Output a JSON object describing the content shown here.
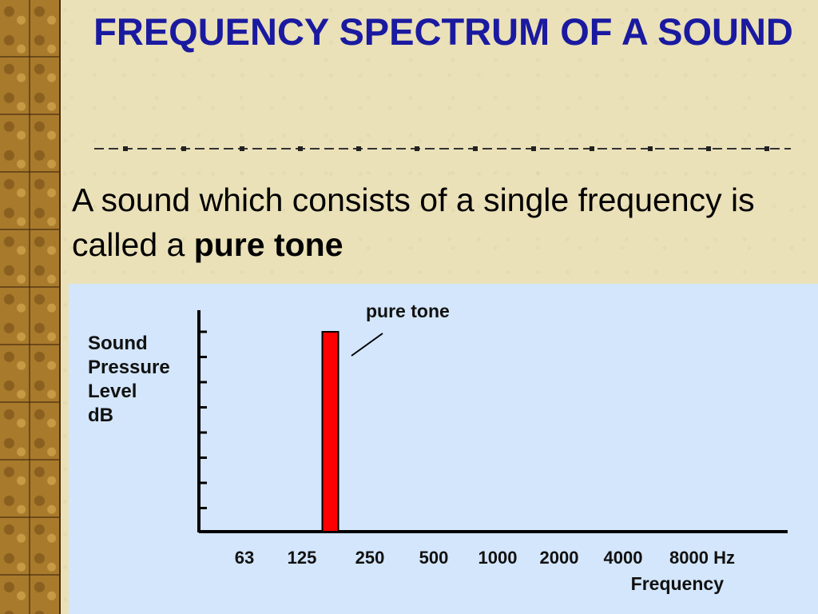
{
  "slide": {
    "title": "FREQUENCY SPECTRUM OF A SOUND",
    "body_prefix": "A sound which consists of a single frequency is called a ",
    "body_bold": "pure tone"
  },
  "chart_data": {
    "type": "bar",
    "categories": [
      "63",
      "125",
      "250",
      "500",
      "1000",
      "2000",
      "4000",
      "8000 Hz"
    ],
    "tick_labels": [
      "63",
      "125",
      "250",
      "500",
      "1000",
      "2000",
      "4000",
      "8000 Hz"
    ],
    "values": [
      0,
      0,
      1,
      0,
      0,
      0,
      0,
      0
    ],
    "bar_position_between": [
      "125",
      "250"
    ],
    "bar_color": "#ff0000",
    "annotation": "pure tone",
    "ylabel_lines": [
      "Sound",
      "Pressure",
      "Level",
      "dB"
    ],
    "xlabel": "Frequency",
    "y_ticks": 8,
    "grid": false,
    "legend": "none"
  },
  "colors": {
    "title": "#1a1aa0",
    "chart_background": "#d3e6fb",
    "bar": "#ff0000"
  }
}
